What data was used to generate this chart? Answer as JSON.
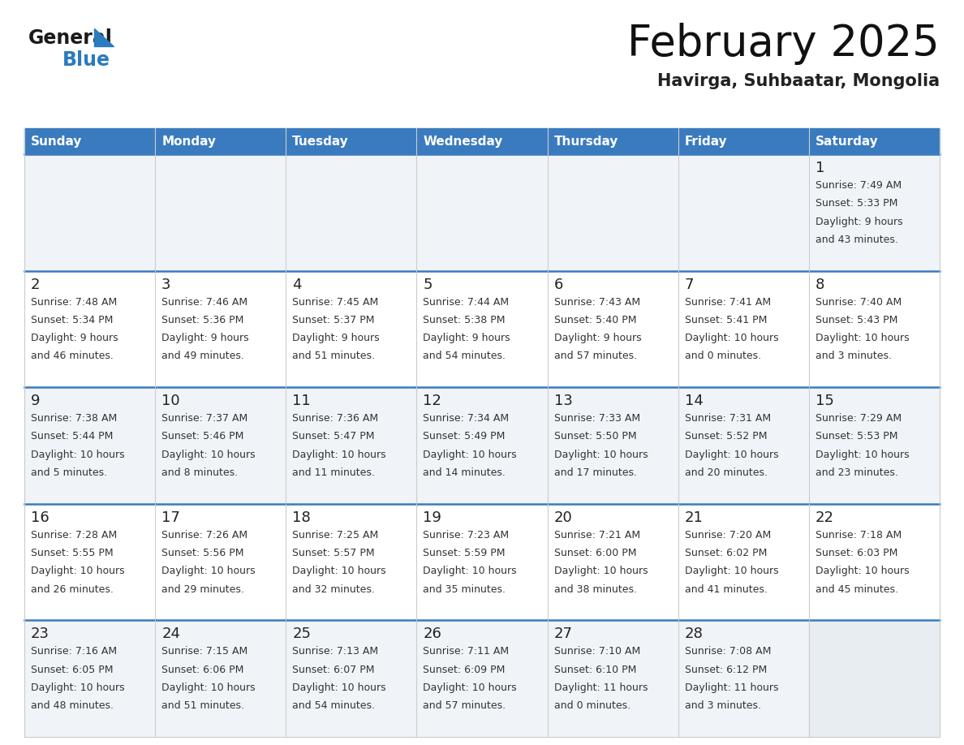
{
  "title": "February 2025",
  "subtitle": "Havirga, Suhbaatar, Mongolia",
  "header_color": "#3a7bbf",
  "header_text_color": "#ffffff",
  "row_colors": [
    "#f0f4f8",
    "#ffffff"
  ],
  "text_color": "#333333",
  "border_color": "#3a7bbf",
  "days_of_week": [
    "Sunday",
    "Monday",
    "Tuesday",
    "Wednesday",
    "Thursday",
    "Friday",
    "Saturday"
  ],
  "calendar_data": [
    [
      null,
      null,
      null,
      null,
      null,
      null,
      {
        "day": "1",
        "sunrise": "Sunrise: 7:49 AM",
        "sunset": "Sunset: 5:33 PM",
        "daylight": "Daylight: 9 hours",
        "daylight2": "and 43 minutes."
      }
    ],
    [
      {
        "day": "2",
        "sunrise": "Sunrise: 7:48 AM",
        "sunset": "Sunset: 5:34 PM",
        "daylight": "Daylight: 9 hours",
        "daylight2": "and 46 minutes."
      },
      {
        "day": "3",
        "sunrise": "Sunrise: 7:46 AM",
        "sunset": "Sunset: 5:36 PM",
        "daylight": "Daylight: 9 hours",
        "daylight2": "and 49 minutes."
      },
      {
        "day": "4",
        "sunrise": "Sunrise: 7:45 AM",
        "sunset": "Sunset: 5:37 PM",
        "daylight": "Daylight: 9 hours",
        "daylight2": "and 51 minutes."
      },
      {
        "day": "5",
        "sunrise": "Sunrise: 7:44 AM",
        "sunset": "Sunset: 5:38 PM",
        "daylight": "Daylight: 9 hours",
        "daylight2": "and 54 minutes."
      },
      {
        "day": "6",
        "sunrise": "Sunrise: 7:43 AM",
        "sunset": "Sunset: 5:40 PM",
        "daylight": "Daylight: 9 hours",
        "daylight2": "and 57 minutes."
      },
      {
        "day": "7",
        "sunrise": "Sunrise: 7:41 AM",
        "sunset": "Sunset: 5:41 PM",
        "daylight": "Daylight: 10 hours",
        "daylight2": "and 0 minutes."
      },
      {
        "day": "8",
        "sunrise": "Sunrise: 7:40 AM",
        "sunset": "Sunset: 5:43 PM",
        "daylight": "Daylight: 10 hours",
        "daylight2": "and 3 minutes."
      }
    ],
    [
      {
        "day": "9",
        "sunrise": "Sunrise: 7:38 AM",
        "sunset": "Sunset: 5:44 PM",
        "daylight": "Daylight: 10 hours",
        "daylight2": "and 5 minutes."
      },
      {
        "day": "10",
        "sunrise": "Sunrise: 7:37 AM",
        "sunset": "Sunset: 5:46 PM",
        "daylight": "Daylight: 10 hours",
        "daylight2": "and 8 minutes."
      },
      {
        "day": "11",
        "sunrise": "Sunrise: 7:36 AM",
        "sunset": "Sunset: 5:47 PM",
        "daylight": "Daylight: 10 hours",
        "daylight2": "and 11 minutes."
      },
      {
        "day": "12",
        "sunrise": "Sunrise: 7:34 AM",
        "sunset": "Sunset: 5:49 PM",
        "daylight": "Daylight: 10 hours",
        "daylight2": "and 14 minutes."
      },
      {
        "day": "13",
        "sunrise": "Sunrise: 7:33 AM",
        "sunset": "Sunset: 5:50 PM",
        "daylight": "Daylight: 10 hours",
        "daylight2": "and 17 minutes."
      },
      {
        "day": "14",
        "sunrise": "Sunrise: 7:31 AM",
        "sunset": "Sunset: 5:52 PM",
        "daylight": "Daylight: 10 hours",
        "daylight2": "and 20 minutes."
      },
      {
        "day": "15",
        "sunrise": "Sunrise: 7:29 AM",
        "sunset": "Sunset: 5:53 PM",
        "daylight": "Daylight: 10 hours",
        "daylight2": "and 23 minutes."
      }
    ],
    [
      {
        "day": "16",
        "sunrise": "Sunrise: 7:28 AM",
        "sunset": "Sunset: 5:55 PM",
        "daylight": "Daylight: 10 hours",
        "daylight2": "and 26 minutes."
      },
      {
        "day": "17",
        "sunrise": "Sunrise: 7:26 AM",
        "sunset": "Sunset: 5:56 PM",
        "daylight": "Daylight: 10 hours",
        "daylight2": "and 29 minutes."
      },
      {
        "day": "18",
        "sunrise": "Sunrise: 7:25 AM",
        "sunset": "Sunset: 5:57 PM",
        "daylight": "Daylight: 10 hours",
        "daylight2": "and 32 minutes."
      },
      {
        "day": "19",
        "sunrise": "Sunrise: 7:23 AM",
        "sunset": "Sunset: 5:59 PM",
        "daylight": "Daylight: 10 hours",
        "daylight2": "and 35 minutes."
      },
      {
        "day": "20",
        "sunrise": "Sunrise: 7:21 AM",
        "sunset": "Sunset: 6:00 PM",
        "daylight": "Daylight: 10 hours",
        "daylight2": "and 38 minutes."
      },
      {
        "day": "21",
        "sunrise": "Sunrise: 7:20 AM",
        "sunset": "Sunset: 6:02 PM",
        "daylight": "Daylight: 10 hours",
        "daylight2": "and 41 minutes."
      },
      {
        "day": "22",
        "sunrise": "Sunrise: 7:18 AM",
        "sunset": "Sunset: 6:03 PM",
        "daylight": "Daylight: 10 hours",
        "daylight2": "and 45 minutes."
      }
    ],
    [
      {
        "day": "23",
        "sunrise": "Sunrise: 7:16 AM",
        "sunset": "Sunset: 6:05 PM",
        "daylight": "Daylight: 10 hours",
        "daylight2": "and 48 minutes."
      },
      {
        "day": "24",
        "sunrise": "Sunrise: 7:15 AM",
        "sunset": "Sunset: 6:06 PM",
        "daylight": "Daylight: 10 hours",
        "daylight2": "and 51 minutes."
      },
      {
        "day": "25",
        "sunrise": "Sunrise: 7:13 AM",
        "sunset": "Sunset: 6:07 PM",
        "daylight": "Daylight: 10 hours",
        "daylight2": "and 54 minutes."
      },
      {
        "day": "26",
        "sunrise": "Sunrise: 7:11 AM",
        "sunset": "Sunset: 6:09 PM",
        "daylight": "Daylight: 10 hours",
        "daylight2": "and 57 minutes."
      },
      {
        "day": "27",
        "sunrise": "Sunrise: 7:10 AM",
        "sunset": "Sunset: 6:10 PM",
        "daylight": "Daylight: 11 hours",
        "daylight2": "and 0 minutes."
      },
      {
        "day": "28",
        "sunrise": "Sunrise: 7:08 AM",
        "sunset": "Sunset: 6:12 PM",
        "daylight": "Daylight: 11 hours",
        "daylight2": "and 3 minutes."
      },
      null
    ]
  ]
}
